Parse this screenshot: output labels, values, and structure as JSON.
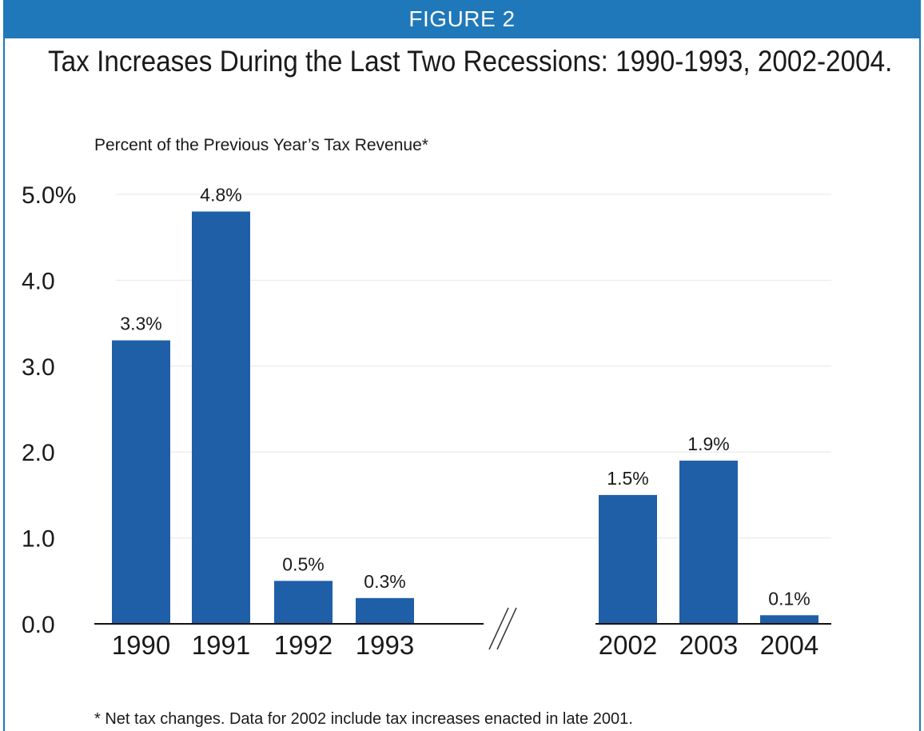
{
  "header": {
    "label": "FIGURE 2"
  },
  "colors": {
    "accent": "#1f78b9",
    "bar": "#1f5fa8",
    "grid": "#e6e6e6",
    "text": "#1a1a1a"
  },
  "chart_data": {
    "type": "bar",
    "title": "Tax Increases During the Last Two Recessions: 1990-1993, 2002-2004.",
    "ylabel": "Percent of the Previous Year’s Tax Revenue*",
    "xlabel": "",
    "categories": [
      "1990",
      "1991",
      "1992",
      "1993",
      "2002",
      "2003",
      "2004"
    ],
    "values": [
      3.3,
      4.8,
      0.5,
      0.3,
      1.5,
      1.9,
      0.1
    ],
    "data_labels": [
      "3.3%",
      "4.8%",
      "0.5%",
      "0.3%",
      "1.5%",
      "1.9%",
      "0.1%"
    ],
    "ylim": [
      0,
      5
    ],
    "yticks": [
      0,
      1,
      2,
      3,
      4,
      5
    ],
    "ytick_labels": [
      "0.0",
      "1.0",
      "2.0",
      "3.0",
      "4.0",
      "5.0%"
    ],
    "grid": true,
    "axis_break": "between 1993 and 2002",
    "break_mark": "//"
  },
  "footnote": "* Net tax changes.  Data for 2002 include tax increases enacted in late 2001."
}
